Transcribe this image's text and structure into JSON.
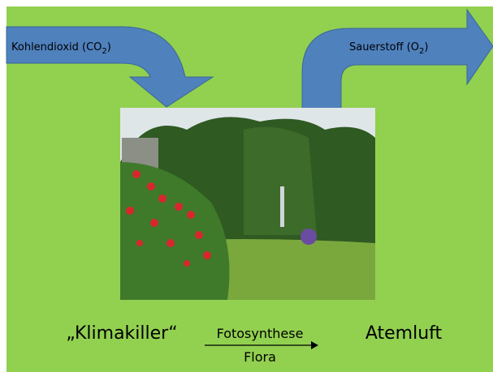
{
  "inputs": {
    "label": {
      "text": "Kohlendioxid (CO",
      "sub": "2",
      "tail": ")"
    }
  },
  "outputs": {
    "label": {
      "text": "Sauerstoff (O",
      "sub": "2",
      "tail": ")"
    }
  },
  "process": {
    "source": "„Klimakiller“",
    "arrow_top": "Fotosynthese",
    "arrow_bottom": "Flora",
    "result": "Atemluft"
  }
}
